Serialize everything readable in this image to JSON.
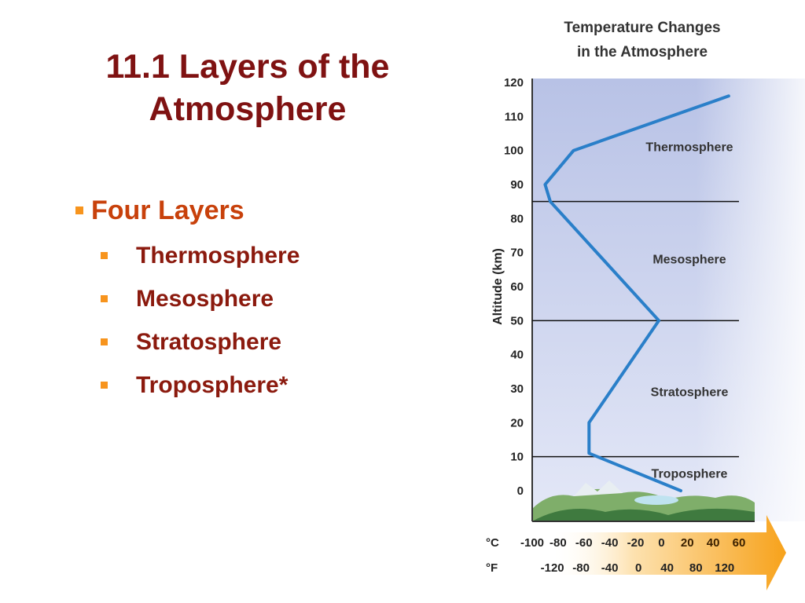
{
  "slide": {
    "title_line1": "11.1 Layers of the",
    "title_line2": "Atmosphere",
    "main_bullet": "Four Layers",
    "sub_bullets": [
      "Thermosphere",
      "Mesosphere",
      "Stratosphere",
      "Troposphere*"
    ]
  },
  "colors": {
    "title": "#7f1212",
    "main_bullet": "#c8410b",
    "sub_bullet": "#8b1a0e",
    "bullet_marker": "#f7941d",
    "temperature_line": "#2a7fc9",
    "sky_top": "#b8c2e6",
    "sky_bottom": "#e4e8f7",
    "arrow": "#f7a21b"
  },
  "chart_data": {
    "type": "line",
    "title": "Temperature Changes in the Atmosphere",
    "title_lines": [
      "Temperature Changes",
      "in the Atmosphere"
    ],
    "ylabel": "Altitude (km)",
    "ylim": [
      0,
      120
    ],
    "y_ticks": [
      0,
      10,
      20,
      30,
      40,
      50,
      60,
      70,
      80,
      90,
      100,
      110,
      120
    ],
    "xlim": [
      -100,
      60
    ],
    "x_ticks_c": [
      -100,
      -80,
      -60,
      -40,
      -20,
      0,
      20,
      40,
      60
    ],
    "x_ticks_c_labels": [
      "-100",
      "-80",
      "-60",
      "-40",
      "-20",
      "0",
      "20",
      "40",
      "60"
    ],
    "x_ticks_f": [
      {
        "label": "-120",
        "c": -84.4
      },
      {
        "label": "-80",
        "c": -62.2
      },
      {
        "label": "-40",
        "c": -40
      },
      {
        "label": "0",
        "c": -17.8
      },
      {
        "label": "40",
        "c": 4.4
      },
      {
        "label": "80",
        "c": 26.7
      },
      {
        "label": "120",
        "c": 48.9
      }
    ],
    "x_unit_c": "°C",
    "x_unit_f": "°F",
    "series": [
      {
        "points": [
          {
            "temp_c": 15,
            "alt_km": 0
          },
          {
            "temp_c": -56,
            "alt_km": 11
          },
          {
            "temp_c": -56,
            "alt_km": 20
          },
          {
            "temp_c": -2,
            "alt_km": 50
          },
          {
            "temp_c": -86,
            "alt_km": 85
          },
          {
            "temp_c": -90,
            "alt_km": 90
          },
          {
            "temp_c": -68,
            "alt_km": 100
          },
          {
            "temp_c": 52,
            "alt_km": 116
          }
        ]
      }
    ],
    "boundaries_km": [
      10,
      50,
      85
    ],
    "layers": [
      {
        "name": "Thermosphere",
        "label_alt_km": 101
      },
      {
        "name": "Mesosphere",
        "label_alt_km": 68
      },
      {
        "name": "Stratosphere",
        "label_alt_km": 29
      },
      {
        "name": "Troposphere",
        "label_alt_km": 5
      }
    ],
    "grid": false
  }
}
